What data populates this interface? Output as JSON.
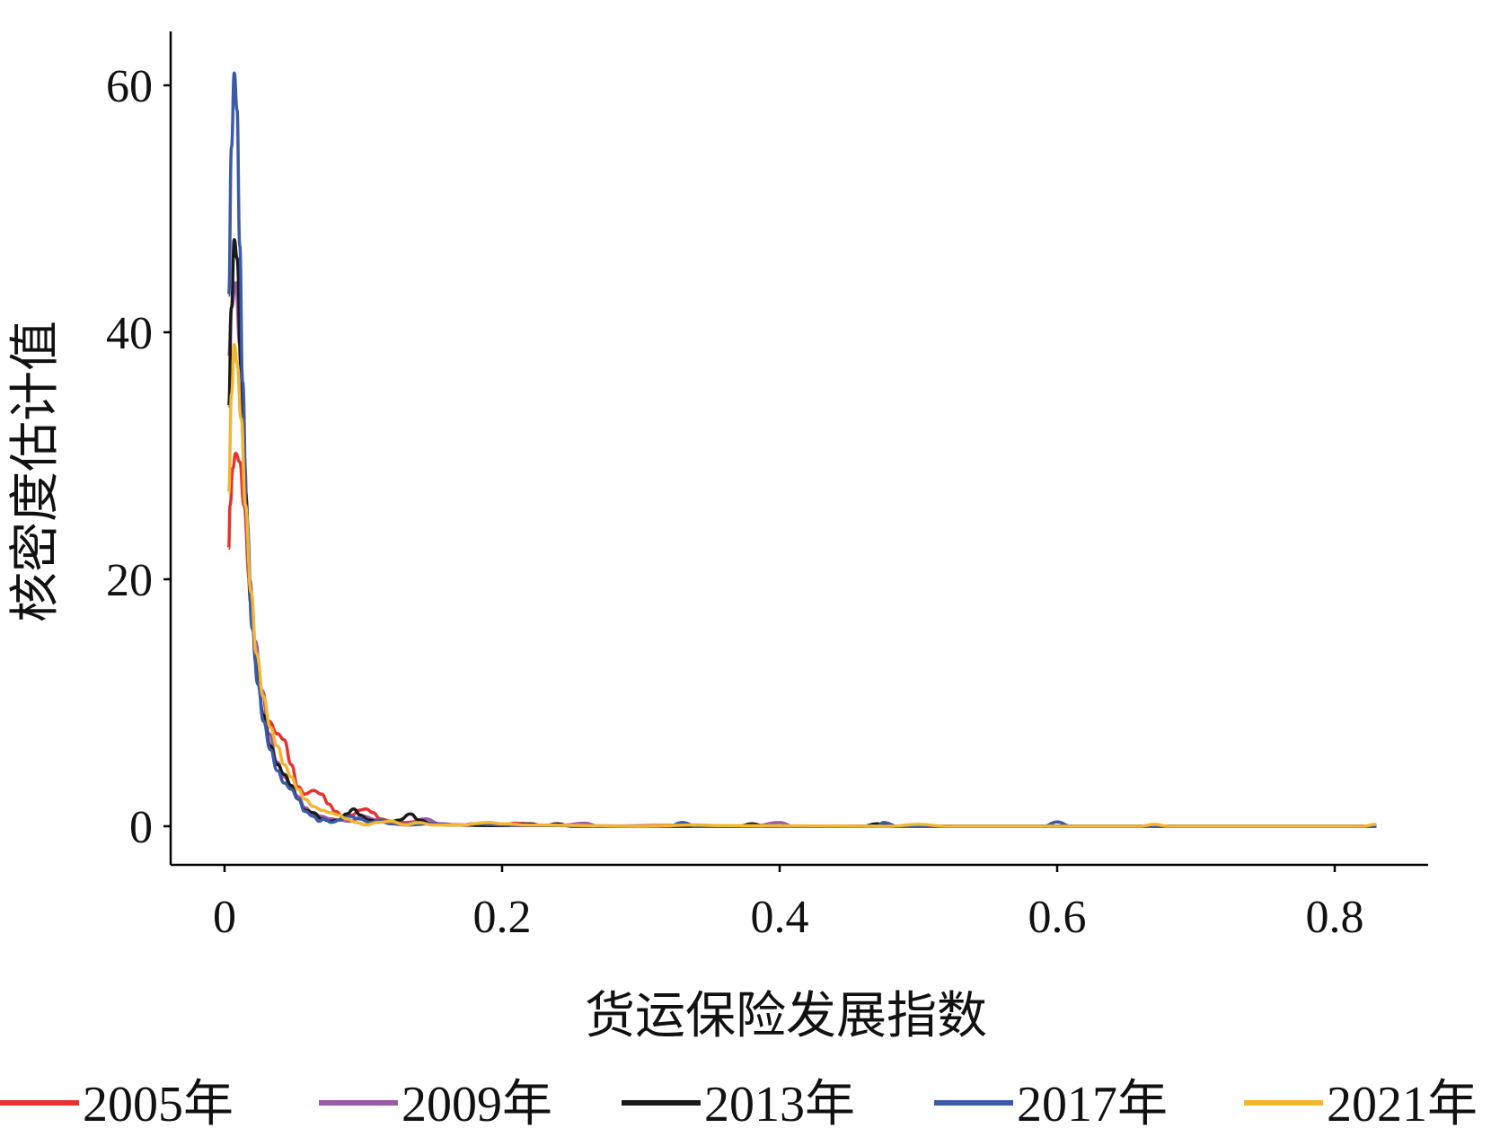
{
  "chart_data": {
    "type": "line",
    "title": "",
    "xlabel": "货运保险发展指数",
    "ylabel": "核密度估计值",
    "xlim": [
      0,
      0.85
    ],
    "ylim": [
      -2,
      64
    ],
    "x_ticks": [
      "0",
      "0.2",
      "0.4",
      "0.6",
      "0.8"
    ],
    "y_ticks": [
      "0",
      "20",
      "40",
      "60"
    ],
    "grid": false,
    "legend_position": "bottom",
    "series": [
      {
        "name": "2005年",
        "color": "#e8322d",
        "points": [
          [
            0.003,
            22.5
          ],
          [
            0.004,
            26
          ],
          [
            0.006,
            29
          ],
          [
            0.008,
            30.2
          ],
          [
            0.011,
            29.5
          ],
          [
            0.014,
            26
          ],
          [
            0.018,
            20
          ],
          [
            0.022,
            15
          ],
          [
            0.027,
            11
          ],
          [
            0.032,
            8.5
          ],
          [
            0.038,
            7.5
          ],
          [
            0.043,
            7
          ],
          [
            0.048,
            5
          ],
          [
            0.053,
            3.2
          ],
          [
            0.058,
            2.6
          ],
          [
            0.064,
            2.9
          ],
          [
            0.07,
            2.6
          ],
          [
            0.075,
            1.8
          ],
          [
            0.08,
            1.2
          ],
          [
            0.086,
            0.7
          ],
          [
            0.092,
            0.9
          ],
          [
            0.097,
            1.3
          ],
          [
            0.102,
            1.4
          ],
          [
            0.107,
            1.1
          ],
          [
            0.112,
            0.6
          ],
          [
            0.12,
            0.4
          ],
          [
            0.13,
            0.3
          ],
          [
            0.14,
            0.4
          ],
          [
            0.15,
            0.2
          ],
          [
            0.17,
            0.1
          ],
          [
            0.2,
            0.1
          ],
          [
            0.21,
            0.25
          ],
          [
            0.23,
            0.05
          ],
          [
            0.25,
            0.1
          ],
          [
            0.27,
            0
          ],
          [
            0.34,
            0.1
          ],
          [
            0.36,
            0
          ],
          [
            0.5,
            0
          ],
          [
            0.7,
            0
          ],
          [
            0.83,
            0
          ]
        ]
      },
      {
        "name": "2009年",
        "color": "#9b59a8",
        "points": [
          [
            0.003,
            38
          ],
          [
            0.005,
            42
          ],
          [
            0.008,
            44
          ],
          [
            0.011,
            39
          ],
          [
            0.014,
            30
          ],
          [
            0.018,
            20
          ],
          [
            0.022,
            15
          ],
          [
            0.027,
            11
          ],
          [
            0.032,
            7.5
          ],
          [
            0.038,
            5.2
          ],
          [
            0.043,
            4
          ],
          [
            0.048,
            3.2
          ],
          [
            0.053,
            2.4
          ],
          [
            0.058,
            1.5
          ],
          [
            0.064,
            1
          ],
          [
            0.07,
            0.8
          ],
          [
            0.076,
            0.6
          ],
          [
            0.083,
            0.5
          ],
          [
            0.09,
            0.4
          ],
          [
            0.1,
            0.8
          ],
          [
            0.11,
            0.5
          ],
          [
            0.12,
            0.2
          ],
          [
            0.13,
            0.2
          ],
          [
            0.145,
            0.6
          ],
          [
            0.155,
            0.2
          ],
          [
            0.17,
            0.1
          ],
          [
            0.2,
            0.05
          ],
          [
            0.24,
            0.05
          ],
          [
            0.26,
            0.25
          ],
          [
            0.27,
            0
          ],
          [
            0.38,
            0
          ],
          [
            0.4,
            0.3
          ],
          [
            0.41,
            0
          ],
          [
            0.6,
            0
          ],
          [
            0.83,
            0
          ]
        ]
      },
      {
        "name": "2013年",
        "color": "#1a1a1a",
        "points": [
          [
            0.003,
            34
          ],
          [
            0.005,
            42
          ],
          [
            0.007,
            47.5
          ],
          [
            0.009,
            46
          ],
          [
            0.012,
            37
          ],
          [
            0.015,
            27
          ],
          [
            0.019,
            18
          ],
          [
            0.023,
            13
          ],
          [
            0.028,
            9
          ],
          [
            0.033,
            6.5
          ],
          [
            0.038,
            5
          ],
          [
            0.043,
            4.2
          ],
          [
            0.048,
            3.3
          ],
          [
            0.053,
            2.2
          ],
          [
            0.058,
            1.3
          ],
          [
            0.064,
            1.1
          ],
          [
            0.07,
            0.6
          ],
          [
            0.076,
            0.4
          ],
          [
            0.082,
            0.5
          ],
          [
            0.088,
            1
          ],
          [
            0.093,
            1.4
          ],
          [
            0.098,
            0.9
          ],
          [
            0.104,
            0.5
          ],
          [
            0.11,
            0.4
          ],
          [
            0.118,
            0.3
          ],
          [
            0.126,
            0.5
          ],
          [
            0.134,
            1
          ],
          [
            0.14,
            0.5
          ],
          [
            0.15,
            0.2
          ],
          [
            0.16,
            0.1
          ],
          [
            0.2,
            0.05
          ],
          [
            0.22,
            0.2
          ],
          [
            0.23,
            0.05
          ],
          [
            0.24,
            0.2
          ],
          [
            0.25,
            0
          ],
          [
            0.37,
            0
          ],
          [
            0.38,
            0.2
          ],
          [
            0.39,
            0
          ],
          [
            0.46,
            0
          ],
          [
            0.47,
            0.2
          ],
          [
            0.48,
            0
          ],
          [
            0.83,
            0
          ]
        ]
      },
      {
        "name": "2017年",
        "color": "#3b5aa8",
        "points": [
          [
            0.003,
            43
          ],
          [
            0.005,
            55
          ],
          [
            0.007,
            61
          ],
          [
            0.009,
            58
          ],
          [
            0.011,
            47
          ],
          [
            0.013,
            36
          ],
          [
            0.016,
            25
          ],
          [
            0.02,
            16
          ],
          [
            0.024,
            11.5
          ],
          [
            0.028,
            8.5
          ],
          [
            0.033,
            6.2
          ],
          [
            0.038,
            4.5
          ],
          [
            0.043,
            3.5
          ],
          [
            0.048,
            3
          ],
          [
            0.053,
            2.2
          ],
          [
            0.058,
            1.2
          ],
          [
            0.064,
            0.8
          ],
          [
            0.068,
            0.4
          ],
          [
            0.072,
            0.6
          ],
          [
            0.077,
            0.3
          ],
          [
            0.083,
            0.5
          ],
          [
            0.09,
            0.8
          ],
          [
            0.097,
            0.6
          ],
          [
            0.105,
            0.3
          ],
          [
            0.113,
            0.5
          ],
          [
            0.12,
            0.2
          ],
          [
            0.13,
            0.1
          ],
          [
            0.15,
            0.2
          ],
          [
            0.17,
            0.1
          ],
          [
            0.18,
            0.2
          ],
          [
            0.2,
            0.1
          ],
          [
            0.24,
            0.05
          ],
          [
            0.32,
            0
          ],
          [
            0.33,
            0.3
          ],
          [
            0.34,
            0
          ],
          [
            0.47,
            0
          ],
          [
            0.475,
            0.3
          ],
          [
            0.485,
            0
          ],
          [
            0.59,
            0
          ],
          [
            0.6,
            0.35
          ],
          [
            0.61,
            0
          ],
          [
            0.83,
            0
          ]
        ]
      },
      {
        "name": "2021年",
        "color": "#f2b630",
        "points": [
          [
            0.003,
            27
          ],
          [
            0.005,
            35
          ],
          [
            0.007,
            39
          ],
          [
            0.009,
            37.5
          ],
          [
            0.012,
            33
          ],
          [
            0.015,
            26
          ],
          [
            0.019,
            19
          ],
          [
            0.023,
            14
          ],
          [
            0.028,
            10.5
          ],
          [
            0.033,
            8
          ],
          [
            0.038,
            6.5
          ],
          [
            0.043,
            5
          ],
          [
            0.048,
            4
          ],
          [
            0.053,
            3
          ],
          [
            0.058,
            2.2
          ],
          [
            0.064,
            1.6
          ],
          [
            0.07,
            1.3
          ],
          [
            0.076,
            1.1
          ],
          [
            0.082,
            0.9
          ],
          [
            0.088,
            0.6
          ],
          [
            0.095,
            0.3
          ],
          [
            0.102,
            0.1
          ],
          [
            0.11,
            0.3
          ],
          [
            0.12,
            0.4
          ],
          [
            0.13,
            0.1
          ],
          [
            0.14,
            0.3
          ],
          [
            0.15,
            0.1
          ],
          [
            0.17,
            0.1
          ],
          [
            0.19,
            0.3
          ],
          [
            0.2,
            0.2
          ],
          [
            0.22,
            0.1
          ],
          [
            0.3,
            0
          ],
          [
            0.34,
            0.1
          ],
          [
            0.36,
            0.05
          ],
          [
            0.48,
            0
          ],
          [
            0.5,
            0.15
          ],
          [
            0.52,
            0
          ],
          [
            0.66,
            0
          ],
          [
            0.67,
            0.15
          ],
          [
            0.68,
            0
          ],
          [
            0.82,
            0
          ],
          [
            0.83,
            0.15
          ]
        ]
      }
    ]
  }
}
